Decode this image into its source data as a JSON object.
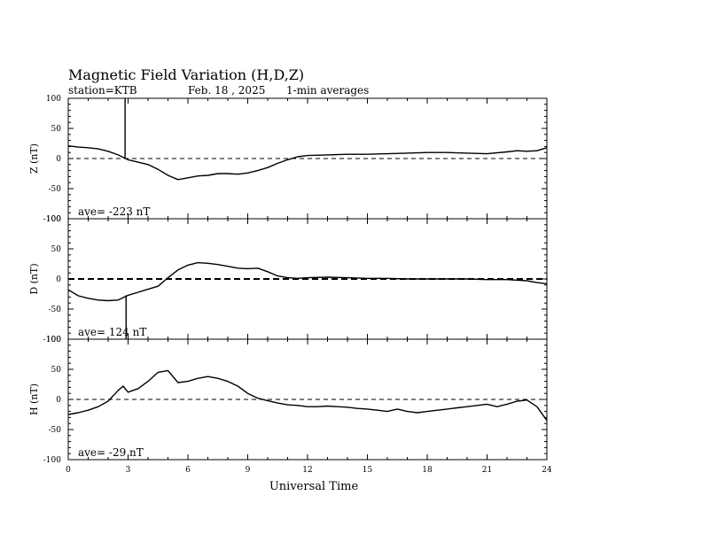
{
  "chart_data": {
    "type": "line",
    "title": "Magnetic Field Variation (H,D,Z)",
    "subtitle": {
      "station": "station=KTB",
      "date": "Feb. 18 , 2025",
      "averaging": "1-min averages"
    },
    "xlabel": "Universal Time",
    "xlim": [
      0,
      24
    ],
    "xticks": [
      "0",
      "3",
      "6",
      "9",
      "12",
      "15",
      "18",
      "21",
      "24"
    ],
    "yticks": [
      "100",
      "50",
      "0",
      "-50",
      "-100"
    ],
    "panels": [
      {
        "ylabel": "Z (nT)",
        "ylim": [
          -100,
          100
        ],
        "ave_label": "ave= -223  nT",
        "baseline": "dashed",
        "spike": {
          "x": 2.85,
          "y_from": 0,
          "y_to": 100
        },
        "x": [
          0,
          0.5,
          1,
          1.5,
          2,
          2.5,
          3,
          3.5,
          4,
          4.5,
          5,
          5.5,
          6,
          6.5,
          7,
          7.5,
          8,
          8.5,
          9,
          9.5,
          10,
          10.5,
          11,
          11.5,
          12,
          13,
          14,
          15,
          16,
          17,
          18,
          19,
          20,
          21,
          22,
          22.5,
          23,
          23.5,
          24
        ],
        "y": [
          21,
          19,
          18,
          16,
          12,
          6,
          -2,
          -6,
          -10,
          -18,
          -28,
          -35,
          -32,
          -29,
          -28,
          -25,
          -25,
          -26,
          -24,
          -20,
          -15,
          -8,
          -2,
          3,
          5,
          6,
          7,
          7,
          8,
          9,
          10,
          10,
          9,
          8,
          11,
          13,
          12,
          13,
          18
        ]
      },
      {
        "ylabel": "D (nT)",
        "ylim": [
          -100,
          100
        ],
        "ave_label": "ave= 124   nT",
        "baseline": "bold-dashed",
        "spike": {
          "x": 2.9,
          "y_from": -27,
          "y_to": -100
        },
        "x": [
          0,
          0.5,
          1,
          1.5,
          2,
          2.5,
          3,
          3.5,
          4,
          4.5,
          5,
          5.5,
          6,
          6.5,
          7,
          7.5,
          8,
          8.5,
          9,
          9.5,
          10,
          10.5,
          11,
          11.5,
          12,
          13,
          14,
          15,
          16,
          17,
          18,
          19,
          20,
          21,
          22,
          23,
          23.5,
          24
        ],
        "y": [
          -18,
          -28,
          -32,
          -35,
          -36,
          -35,
          -27,
          -22,
          -17,
          -12,
          2,
          15,
          23,
          27,
          26,
          24,
          21,
          18,
          17,
          18,
          12,
          5,
          2,
          1,
          2,
          3,
          2,
          1,
          1,
          0,
          0,
          0,
          0,
          -1,
          -1,
          -3,
          -6,
          -8
        ]
      },
      {
        "ylabel": "H (nT)",
        "ylim": [
          -100,
          100
        ],
        "ave_label": "ave= -29   nT",
        "baseline": "dashed",
        "x": [
          0,
          0.5,
          1,
          1.5,
          2,
          2.5,
          2.75,
          3,
          3.5,
          4,
          4.5,
          5,
          5.5,
          6,
          6.5,
          7,
          7.5,
          8,
          8.5,
          9,
          9.5,
          10,
          10.5,
          11,
          11.5,
          12,
          12.5,
          13,
          13.5,
          14,
          14.5,
          15,
          15.5,
          16,
          16.5,
          17,
          17.5,
          18,
          18.5,
          19,
          19.5,
          20,
          20.5,
          21,
          21.5,
          22,
          22.5,
          23,
          23.5,
          24
        ],
        "y": [
          -25,
          -22,
          -18,
          -12,
          -3,
          15,
          22,
          12,
          18,
          30,
          45,
          48,
          28,
          30,
          35,
          38,
          35,
          30,
          22,
          10,
          2,
          -2,
          -6,
          -9,
          -10,
          -12,
          -12,
          -11,
          -12,
          -13,
          -15,
          -16,
          -18,
          -20,
          -16,
          -20,
          -22,
          -20,
          -18,
          -16,
          -14,
          -12,
          -10,
          -8,
          -12,
          -8,
          -3,
          -1,
          -12,
          -35
        ]
      }
    ]
  }
}
